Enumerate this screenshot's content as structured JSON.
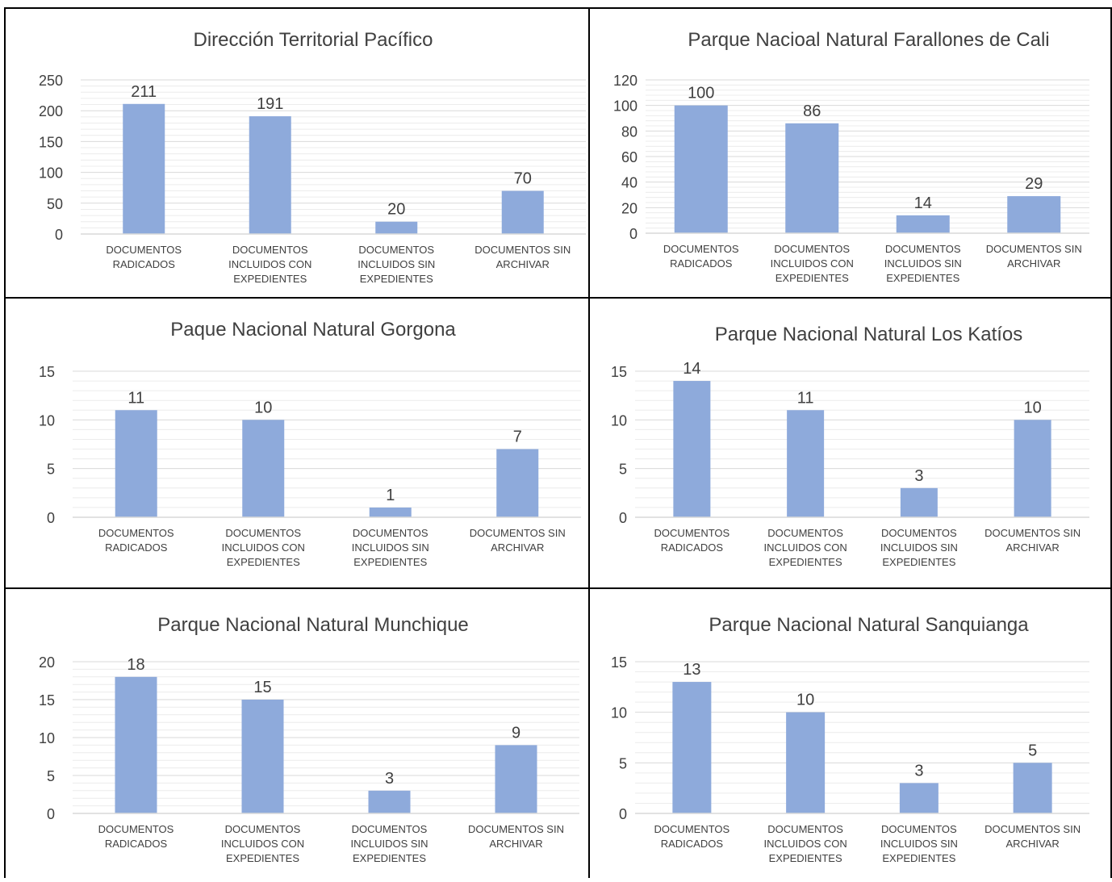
{
  "categories": [
    "DOCUMENTOS RADICADOS",
    "DOCUMENTOS INCLUIDOS CON EXPEDIENTES",
    "DOCUMENTOS INCLUIDOS SIN EXPEDIENTES",
    "DOCUMENTOS SIN ARCHIVAR"
  ],
  "category_lines": [
    [
      "DOCUMENTOS",
      "RADICADOS"
    ],
    [
      "DOCUMENTOS",
      "INCLUIDOS CON",
      "EXPEDIENTES"
    ],
    [
      "DOCUMENTOS",
      "INCLUIDOS SIN",
      "EXPEDIENTES"
    ],
    [
      "DOCUMENTOS SIN",
      "ARCHIVAR"
    ]
  ],
  "colors": {
    "bar": "#8eaadb",
    "grid": "#d9d9d9",
    "text": "#404040",
    "border": "#000000"
  },
  "chart_data": [
    {
      "type": "bar",
      "title": "Dirección Territorial Pacífico",
      "categories": [
        "DOCUMENTOS RADICADOS",
        "DOCUMENTOS INCLUIDOS CON EXPEDIENTES",
        "DOCUMENTOS INCLUIDOS SIN EXPEDIENTES",
        "DOCUMENTOS SIN ARCHIVAR"
      ],
      "values": [
        211,
        191,
        20,
        70
      ],
      "ylim": [
        0,
        250
      ],
      "yticks": [
        0,
        50,
        100,
        150,
        200,
        250
      ],
      "minor_gridlines": true,
      "data_labels": true
    },
    {
      "type": "bar",
      "title": "Parque Nacioal Natural Farallones de Cali",
      "categories": [
        "DOCUMENTOS RADICADOS",
        "DOCUMENTOS INCLUIDOS CON EXPEDIENTES",
        "DOCUMENTOS INCLUIDOS SIN EXPEDIENTES",
        "DOCUMENTOS SIN ARCHIVAR"
      ],
      "values": [
        100,
        86,
        14,
        29
      ],
      "ylim": [
        0,
        120
      ],
      "yticks": [
        0,
        20,
        40,
        60,
        80,
        100,
        120
      ],
      "minor_gridlines": true,
      "data_labels": true
    },
    {
      "type": "bar",
      "title": "Paque Nacional Natural Gorgona",
      "categories": [
        "DOCUMENTOS RADICADOS",
        "DOCUMENTOS INCLUIDOS CON EXPEDIENTES",
        "DOCUMENTOS INCLUIDOS SIN EXPEDIENTES",
        "DOCUMENTOS SIN ARCHIVAR"
      ],
      "values": [
        11,
        10,
        1,
        7
      ],
      "ylim": [
        0,
        15
      ],
      "yticks": [
        0,
        5,
        10,
        15
      ],
      "minor_gridlines": true,
      "data_labels": true
    },
    {
      "type": "bar",
      "title": "Parque Nacional Natural Los Katíos",
      "categories": [
        "DOCUMENTOS RADICADOS",
        "DOCUMENTOS INCLUIDOS CON EXPEDIENTES",
        "DOCUMENTOS INCLUIDOS SIN EXPEDIENTES",
        "DOCUMENTOS SIN ARCHIVAR"
      ],
      "values": [
        14,
        11,
        3,
        10
      ],
      "ylim": [
        0,
        15
      ],
      "yticks": [
        0,
        5,
        10,
        15
      ],
      "minor_gridlines": true,
      "data_labels": true
    },
    {
      "type": "bar",
      "title": "Parque Nacional Natural Munchique",
      "categories": [
        "DOCUMENTOS RADICADOS",
        "DOCUMENTOS INCLUIDOS CON EXPEDIENTES",
        "DOCUMENTOS INCLUIDOS SIN EXPEDIENTES",
        "DOCUMENTOS SIN ARCHIVAR"
      ],
      "values": [
        18,
        15,
        3,
        9
      ],
      "ylim": [
        0,
        20
      ],
      "yticks": [
        0,
        5,
        10,
        15,
        20
      ],
      "minor_gridlines": true,
      "data_labels": true
    },
    {
      "type": "bar",
      "title": "Parque Nacional Natural Sanquianga",
      "categories": [
        "DOCUMENTOS RADICADOS",
        "DOCUMENTOS INCLUIDOS CON EXPEDIENTES",
        "DOCUMENTOS INCLUIDOS SIN EXPEDIENTES",
        "DOCUMENTOS SIN ARCHIVAR"
      ],
      "values": [
        13,
        10,
        3,
        5
      ],
      "ylim": [
        0,
        15
      ],
      "yticks": [
        0,
        5,
        10,
        15
      ],
      "minor_gridlines": true,
      "data_labels": true
    }
  ]
}
